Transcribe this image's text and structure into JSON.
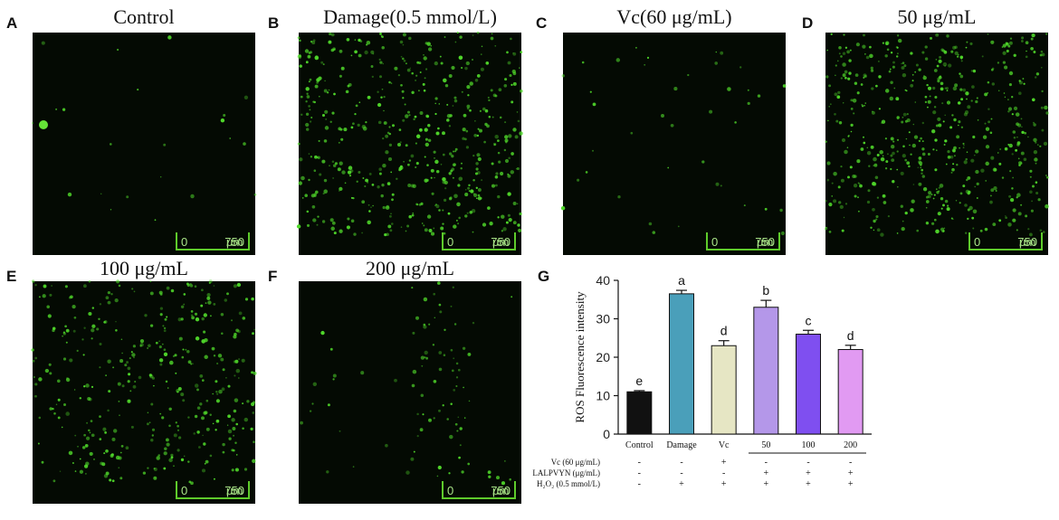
{
  "panels": [
    {
      "letter": "A",
      "title": "Control"
    },
    {
      "letter": "B",
      "title": "Damage(0.5 mmol/L)"
    },
    {
      "letter": "C",
      "title": "Vc(60 μg/mL)"
    },
    {
      "letter": "D",
      "title": "50 μg/mL"
    },
    {
      "letter": "E",
      "title": "100 μg/mL"
    },
    {
      "letter": "F",
      "title": "200 μg/mL"
    },
    {
      "letter": "G",
      "title": ""
    }
  ],
  "scale_bar": {
    "zero": "0",
    "unit": "μm",
    "max": "750"
  },
  "colors": {
    "fluorescence": "#4fd72a",
    "background": "#040a03"
  },
  "chart_data": {
    "type": "bar",
    "ylabel": "ROS Fluorescence intensity",
    "ylim": [
      0,
      40
    ],
    "yticks": [
      "0",
      "10",
      "20",
      "30",
      "40"
    ],
    "categories": [
      "Control",
      "Damage",
      "Vc",
      "50",
      "100",
      "200"
    ],
    "values": [
      11,
      36.5,
      23,
      33,
      26,
      22
    ],
    "errors": [
      0.3,
      0.9,
      1.3,
      1.8,
      1.0,
      1.1
    ],
    "significance": [
      "e",
      "a",
      "d",
      "b",
      "c",
      "d"
    ],
    "colors": [
      "#111111",
      "#4a9fba",
      "#e6e6c4",
      "#b497e9",
      "#7f4ff0",
      "#e19af2"
    ],
    "treatments": [
      {
        "label": "Vc (60 μg/mL)",
        "signs": [
          "-",
          "-",
          "+",
          "-",
          "-",
          "-"
        ]
      },
      {
        "label": "LALPVYN (μg/mL)",
        "signs": [
          "-",
          "-",
          "-",
          "+",
          "+",
          "+"
        ]
      },
      {
        "label": "H₂O₂ (0.5 mmol/L)",
        "signs": [
          "-",
          "+",
          "+",
          "+",
          "+",
          "+"
        ]
      }
    ]
  }
}
